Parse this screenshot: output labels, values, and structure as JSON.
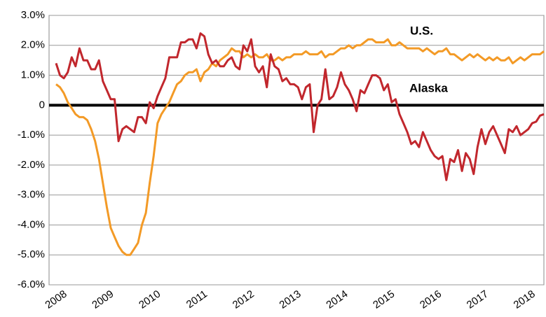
{
  "chart_data": {
    "type": "line",
    "categories": [
      "2008",
      null,
      null,
      null,
      null,
      null,
      null,
      null,
      null,
      null,
      null,
      null,
      "2009",
      null,
      null,
      null,
      null,
      null,
      null,
      null,
      null,
      null,
      null,
      null,
      "2010",
      null,
      null,
      null,
      null,
      null,
      null,
      null,
      null,
      null,
      null,
      null,
      "2011",
      null,
      null,
      null,
      null,
      null,
      null,
      null,
      null,
      null,
      null,
      null,
      "2012",
      null,
      null,
      null,
      null,
      null,
      null,
      null,
      null,
      null,
      null,
      null,
      "2013",
      null,
      null,
      null,
      null,
      null,
      null,
      null,
      null,
      null,
      null,
      null,
      "2014",
      null,
      null,
      null,
      null,
      null,
      null,
      null,
      null,
      null,
      null,
      null,
      "2015",
      null,
      null,
      null,
      null,
      null,
      null,
      null,
      null,
      null,
      null,
      null,
      "2016",
      null,
      null,
      null,
      null,
      null,
      null,
      null,
      null,
      null,
      null,
      null,
      "2017",
      null,
      null,
      null,
      null,
      null,
      null,
      null,
      null,
      null,
      null,
      null,
      "2018",
      null,
      null,
      null,
      null,
      null
    ],
    "series": [
      {
        "name": "U.S.",
        "color": "#f39a26",
        "values": [
          0.7,
          0.6,
          0.4,
          0.1,
          -0.1,
          -0.3,
          -0.4,
          -0.4,
          -0.5,
          -0.8,
          -1.2,
          -1.8,
          -2.6,
          -3.4,
          -4.1,
          -4.4,
          -4.7,
          -4.9,
          -5.0,
          -5.0,
          -4.8,
          -4.6,
          -4.0,
          -3.6,
          -2.6,
          -1.7,
          -0.6,
          -0.3,
          -0.1,
          0.1,
          0.4,
          0.7,
          0.8,
          1.0,
          1.1,
          1.1,
          1.2,
          0.8,
          1.1,
          1.2,
          1.4,
          1.3,
          1.5,
          1.6,
          1.7,
          1.9,
          1.8,
          1.8,
          1.6,
          1.7,
          1.6,
          1.7,
          1.6,
          1.6,
          1.7,
          1.5,
          1.5,
          1.6,
          1.5,
          1.6,
          1.6,
          1.7,
          1.7,
          1.7,
          1.8,
          1.7,
          1.7,
          1.7,
          1.8,
          1.6,
          1.7,
          1.7,
          1.8,
          1.9,
          1.9,
          2.0,
          1.9,
          2.0,
          2.0,
          2.1,
          2.2,
          2.2,
          2.1,
          2.1,
          2.1,
          2.2,
          2.0,
          2.0,
          2.1,
          2.0,
          1.9,
          1.9,
          1.9,
          1.9,
          1.8,
          1.9,
          1.8,
          1.7,
          1.8,
          1.8,
          1.9,
          1.7,
          1.7,
          1.6,
          1.5,
          1.6,
          1.7,
          1.6,
          1.7,
          1.6,
          1.5,
          1.6,
          1.5,
          1.6,
          1.5,
          1.5,
          1.6,
          1.4,
          1.5,
          1.6,
          1.5,
          1.6,
          1.7,
          1.7,
          1.7,
          1.8
        ]
      },
      {
        "name": "Alaska",
        "color": "#c1272d",
        "values": [
          1.4,
          1.0,
          0.9,
          1.1,
          1.6,
          1.3,
          1.9,
          1.5,
          1.5,
          1.2,
          1.2,
          1.5,
          0.8,
          0.5,
          0.2,
          0.2,
          -1.2,
          -0.8,
          -0.7,
          -0.8,
          -0.9,
          -0.4,
          -0.4,
          -0.6,
          0.1,
          -0.1,
          0.3,
          0.6,
          0.9,
          1.6,
          1.6,
          1.6,
          2.1,
          2.1,
          2.2,
          2.2,
          1.9,
          2.4,
          2.3,
          1.7,
          1.4,
          1.5,
          1.3,
          1.3,
          1.5,
          1.6,
          1.3,
          1.2,
          2.0,
          1.8,
          2.2,
          1.3,
          1.1,
          1.3,
          0.6,
          1.7,
          1.3,
          1.2,
          0.8,
          0.9,
          0.7,
          0.7,
          0.6,
          0.2,
          0.6,
          0.7,
          -0.9,
          0.0,
          0.2,
          1.2,
          0.2,
          0.3,
          0.6,
          1.1,
          0.7,
          0.5,
          0.2,
          -0.2,
          0.5,
          0.4,
          0.7,
          1.0,
          1.0,
          0.9,
          0.5,
          0.7,
          0.1,
          0.2,
          -0.3,
          -0.6,
          -0.9,
          -1.3,
          -1.2,
          -1.4,
          -0.9,
          -1.2,
          -1.5,
          -1.7,
          -1.8,
          -1.7,
          -2.5,
          -1.8,
          -1.9,
          -1.5,
          -2.2,
          -1.6,
          -1.8,
          -2.3,
          -1.4,
          -0.8,
          -1.3,
          -0.9,
          -0.7,
          -1.0,
          -1.3,
          -1.6,
          -0.8,
          -0.9,
          -0.7,
          -1.0,
          -0.9,
          -0.8,
          -0.6,
          -0.55,
          -0.35,
          -0.3
        ]
      }
    ],
    "ylim": [
      -6,
      3
    ],
    "yticks": [
      {
        "value": -6,
        "label": "-6.0%"
      },
      {
        "value": -5,
        "label": "-5.0%"
      },
      {
        "value": -4,
        "label": "-4.0%"
      },
      {
        "value": -3,
        "label": "-3.0%"
      },
      {
        "value": -2,
        "label": "-2.0%"
      },
      {
        "value": -1,
        "label": "-1.0%"
      },
      0,
      {
        "value": 1,
        "label": "1.0%"
      },
      {
        "value": 2,
        "label": "2.0%"
      },
      {
        "value": 3,
        "label": "3.0%"
      }
    ],
    "grid": true
  }
}
